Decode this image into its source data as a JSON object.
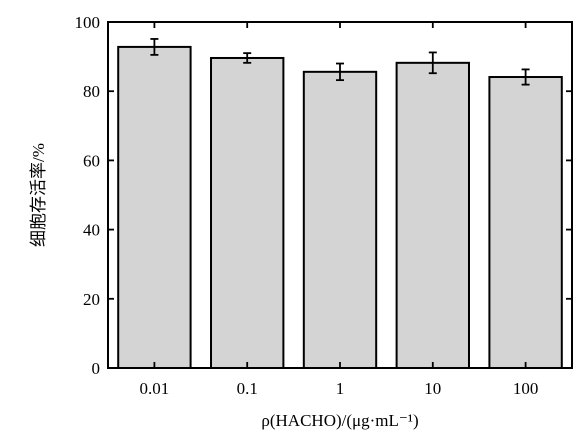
{
  "chart_data": {
    "type": "bar",
    "categories": [
      "0.01",
      "0.1",
      "1",
      "10",
      "100"
    ],
    "values": [
      92.8,
      89.6,
      85.6,
      88.2,
      84.1
    ],
    "error": [
      2.3,
      1.4,
      2.4,
      3.0,
      2.2
    ],
    "ylim": [
      0,
      100
    ],
    "yticks": [
      "0",
      "20",
      "40",
      "60",
      "80",
      "100"
    ],
    "xlabel": "ρ(HACHO)/(μg·mL⁻¹)",
    "ylabel": "细胞存活率/%",
    "grid": false,
    "legend": "none",
    "colors": {
      "bar_fill": "#d4d4d4",
      "bar_stroke": "#000000",
      "axis": "#000000",
      "error_bar": "#000000"
    }
  }
}
